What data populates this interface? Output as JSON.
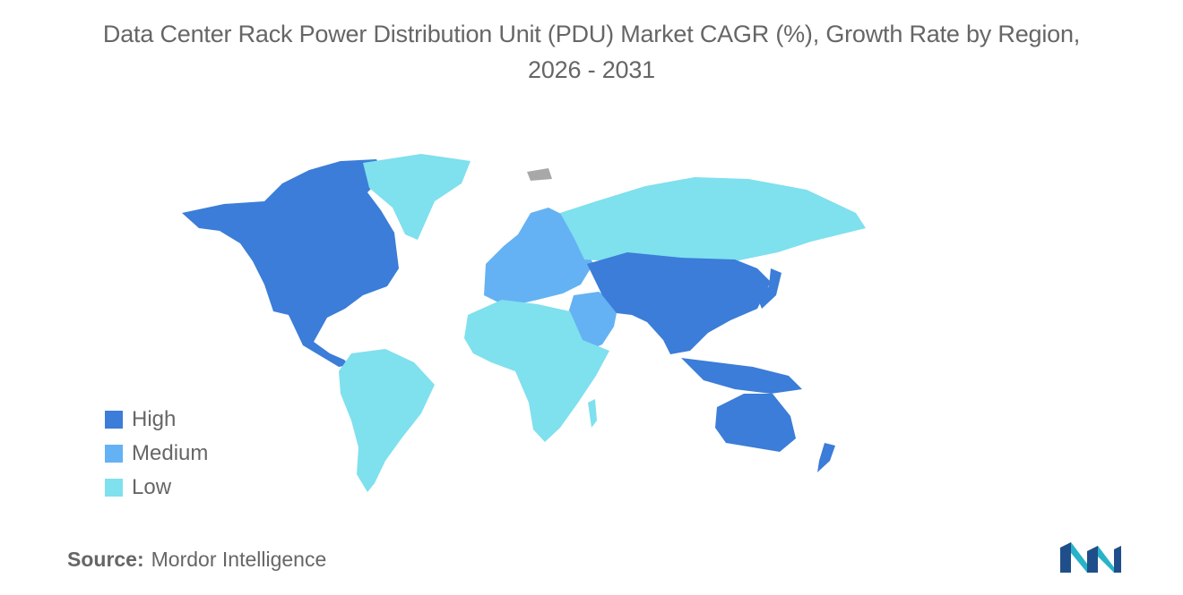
{
  "title": {
    "line1": "Data Center Rack Power Distribution Unit (PDU) Market CAGR (%), Growth Rate by Region,",
    "line2": "2026 - 2031"
  },
  "legend": [
    {
      "label": "High",
      "color": "#3b7dd8"
    },
    {
      "label": "Medium",
      "color": "#64b2f3"
    },
    {
      "label": "Low",
      "color": "#7fe0ee"
    }
  ],
  "regions": {
    "north_america": "High",
    "central_america": "High",
    "greenland": "Low",
    "south_america": "Low",
    "europe": "Medium",
    "middle_east": "Medium",
    "africa": "Low",
    "russia": "Low",
    "asia_pacific": "High",
    "australia_nz": "High"
  },
  "source": {
    "key": "Source:",
    "value": "Mordor Intelligence"
  },
  "colors": {
    "high": "#3b7dd8",
    "medium": "#64b2f3",
    "low": "#7fe0ee",
    "no_data": "#a8a8a8",
    "text": "#666666",
    "logo_dark": "#1f4f8a",
    "logo_light": "#29b3c8"
  }
}
